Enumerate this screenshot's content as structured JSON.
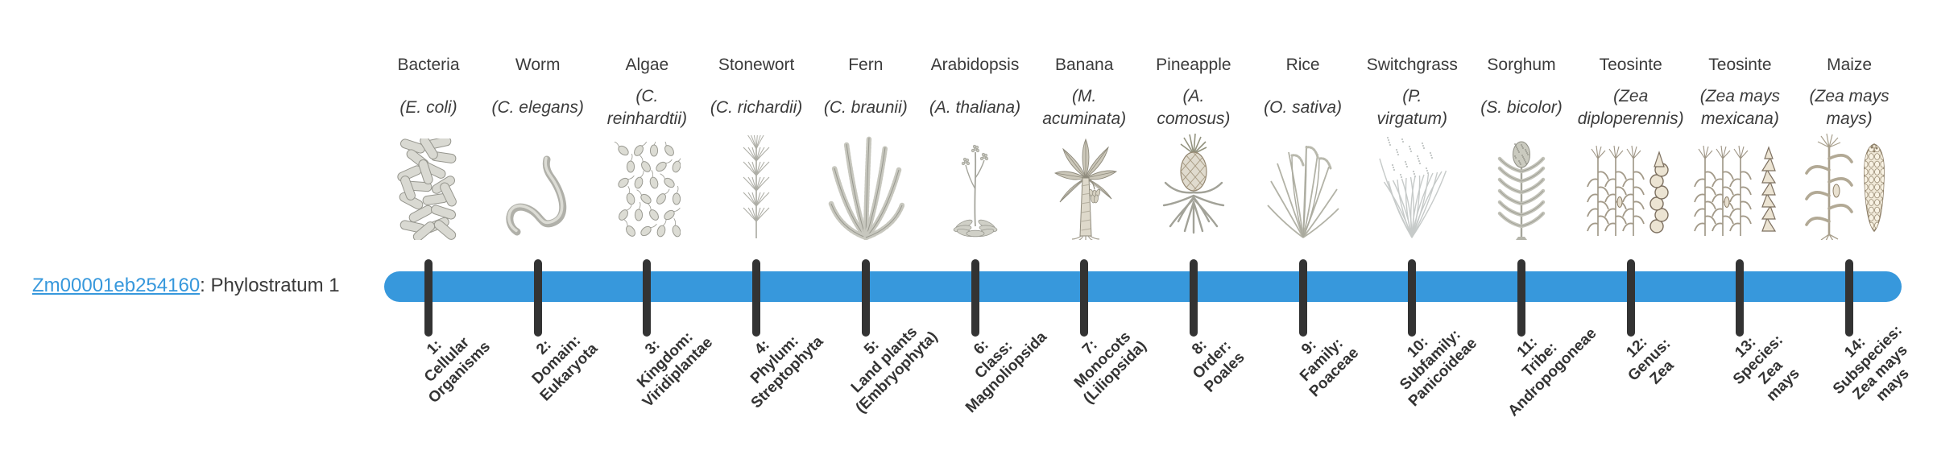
{
  "page": {
    "background": "#ffffff"
  },
  "gene_label": {
    "link_text": "Zm00001eb254160",
    "suffix": ": Phylostratum 1"
  },
  "timeline": {
    "bar_color": "#3798dc",
    "tick_color": "#333333",
    "phylostratum_count": 14
  },
  "organisms": [
    {
      "name": "Bacteria",
      "scientific_lines": [
        "(E. coli)"
      ],
      "icon": "bacteria-icon",
      "stratum_lines": [
        "1:",
        "Cellular",
        "Organisms"
      ]
    },
    {
      "name": "Worm",
      "scientific_lines": [
        "(C. elegans)"
      ],
      "icon": "worm-icon",
      "stratum_lines": [
        "2:",
        "Domain:",
        "Eukaryota"
      ]
    },
    {
      "name": "Algae",
      "scientific_lines": [
        "(C.",
        "reinhardtii)"
      ],
      "icon": "algae-icon",
      "stratum_lines": [
        "3:",
        "Kingdom:",
        "Viridiplantae"
      ]
    },
    {
      "name": "Stonewort",
      "scientific_lines": [
        "(C. richardii)"
      ],
      "icon": "stonewort-icon",
      "stratum_lines": [
        "4:",
        "Phylum:",
        "Streptophyta"
      ]
    },
    {
      "name": "Fern",
      "scientific_lines": [
        "(C. braunii)"
      ],
      "icon": "fern-icon",
      "stratum_lines": [
        "5:",
        "Land plants",
        "(Embryophyta)"
      ]
    },
    {
      "name": "Arabidopsis",
      "scientific_lines": [
        "(A. thaliana)"
      ],
      "icon": "arabidopsis-icon",
      "stratum_lines": [
        "6:",
        "Class:",
        "Magnoliopsida"
      ]
    },
    {
      "name": "Banana",
      "scientific_lines": [
        "(M.",
        "acuminata)"
      ],
      "icon": "banana-icon",
      "stratum_lines": [
        "7:",
        "Monocots",
        "(Liliopsida)"
      ]
    },
    {
      "name": "Pineapple",
      "scientific_lines": [
        "(A.",
        "comosus)"
      ],
      "icon": "pineapple-icon",
      "stratum_lines": [
        "8:",
        "Order:",
        "Poales"
      ]
    },
    {
      "name": "Rice",
      "scientific_lines": [
        "(O. sativa)"
      ],
      "icon": "rice-icon",
      "stratum_lines": [
        "9:",
        "Family:",
        "Poaceae"
      ]
    },
    {
      "name": "Switchgrass",
      "scientific_lines": [
        "(P.",
        "virgatum)"
      ],
      "icon": "switchgrass-icon",
      "stratum_lines": [
        "10:",
        "Subfamily:",
        "Panicoideae"
      ]
    },
    {
      "name": "Sorghum",
      "scientific_lines": [
        "(S. bicolor)"
      ],
      "icon": "sorghum-icon",
      "stratum_lines": [
        "11:",
        "Tribe:",
        "Andropogoneae"
      ]
    },
    {
      "name": "Teosinte",
      "scientific_lines": [
        "(Zea",
        "diploperennis)"
      ],
      "icon": "teosinte-diploperennis-icon",
      "stratum_lines": [
        "12:",
        "Genus:",
        "Zea"
      ]
    },
    {
      "name": "Teosinte",
      "scientific_lines": [
        "(Zea mays",
        "mexicana)"
      ],
      "icon": "teosinte-mexicana-icon",
      "stratum_lines": [
        "13:",
        "Species:",
        "Zea",
        "mays"
      ]
    },
    {
      "name": "Maize",
      "scientific_lines": [
        "(Zea mays",
        "mays)"
      ],
      "icon": "maize-icon",
      "stratum_lines": [
        "14:",
        "Subspecies:",
        "Zea mays",
        "mays"
      ]
    }
  ]
}
